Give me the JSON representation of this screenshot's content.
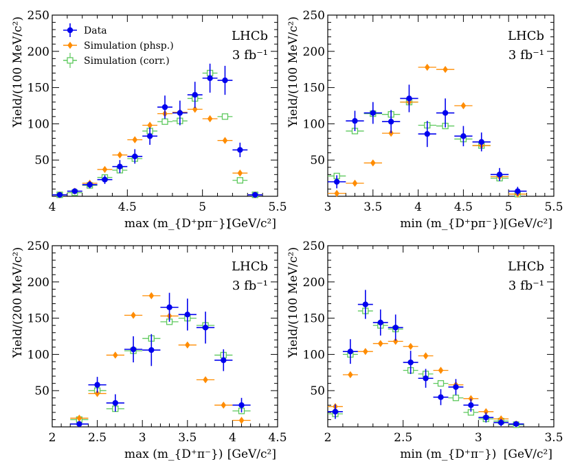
{
  "chart_data": [
    {
      "type": "scatter",
      "experiment": "LHCb",
      "luminosity": "3 fb⁻¹",
      "xlabel": "max (m_{D⁺pπ⁻})",
      "xunit": "[GeV/c²]",
      "ylabel": "Yield/(100 MeV/c²)",
      "xlim": [
        4,
        5.5
      ],
      "ylim": [
        0,
        250
      ],
      "xticks": [
        "4",
        "4.5",
        "5",
        "5.5"
      ],
      "yticks": [
        "50",
        "100",
        "150",
        "200",
        "250"
      ],
      "legend": {
        "placement": "top-left",
        "entries": [
          "Data",
          "Simulation (phsp.)",
          "Simulation (corr.)"
        ]
      },
      "series": [
        {
          "name": "Data",
          "style": "data",
          "color": "#0000ee",
          "x": [
            4.05,
            4.15,
            4.25,
            4.35,
            4.45,
            4.55,
            4.65,
            4.75,
            4.85,
            4.95,
            5.05,
            5.15,
            5.25,
            5.35
          ],
          "y": [
            2,
            7,
            16,
            23,
            41,
            55,
            83,
            123,
            115,
            140,
            163,
            160,
            64,
            2
          ],
          "err": [
            2,
            3,
            5,
            6,
            9,
            10,
            12,
            16,
            17,
            18,
            20,
            20,
            10,
            2
          ]
        },
        {
          "name": "Simulation (phsp.)",
          "style": "phsp",
          "color": "#ff8c00",
          "x": [
            4.05,
            4.15,
            4.25,
            4.35,
            4.45,
            4.55,
            4.65,
            4.75,
            4.85,
            4.95,
            5.05,
            5.15,
            5.25,
            5.35
          ],
          "y": [
            2,
            7,
            18,
            37,
            57,
            78,
            98,
            114,
            116,
            120,
            107,
            77,
            32,
            2
          ]
        },
        {
          "name": "Simulation (corr.)",
          "style": "corr",
          "color": "#5cc85c",
          "x": [
            4.05,
            4.15,
            4.25,
            4.35,
            4.45,
            4.55,
            4.65,
            4.75,
            4.85,
            4.95,
            5.05,
            5.15,
            5.25,
            5.35
          ],
          "y": [
            2,
            5,
            15,
            26,
            36,
            52,
            90,
            103,
            104,
            135,
            170,
            110,
            22,
            2
          ]
        }
      ]
    },
    {
      "type": "scatter",
      "experiment": "LHCb",
      "luminosity": "3 fb⁻¹",
      "xlabel": "min (m_{D⁺pπ⁻})",
      "xunit": "[GeV/c²]",
      "ylabel": "Yield/(100 MeV/c²)",
      "xlim": [
        3,
        5.5
      ],
      "ylim": [
        0,
        250
      ],
      "xticks": [
        "3",
        "3.5",
        "4",
        "4.5",
        "5",
        "5.5"
      ],
      "yticks": [
        "50",
        "100",
        "150",
        "200",
        "250"
      ],
      "series": [
        {
          "name": "Data",
          "style": "data",
          "color": "#0000ee",
          "x": [
            3.1,
            3.3,
            3.5,
            3.7,
            3.9,
            4.1,
            4.3,
            4.5,
            4.7,
            4.9,
            5.1
          ],
          "y": [
            20,
            104,
            115,
            103,
            135,
            86,
            115,
            83,
            75,
            30,
            7
          ],
          "err": [
            9,
            14,
            15,
            16,
            19,
            18,
            20,
            14,
            13,
            9,
            6
          ]
        },
        {
          "name": "Simulation (phsp.)",
          "style": "phsp",
          "color": "#ff8c00",
          "x": [
            3.1,
            3.3,
            3.5,
            3.7,
            3.9,
            4.1,
            4.3,
            4.5,
            4.7,
            4.9,
            5.1
          ],
          "y": [
            4,
            18,
            46,
            87,
            130,
            178,
            175,
            125,
            70,
            27,
            3
          ]
        },
        {
          "name": "Simulation (corr.)",
          "style": "corr",
          "color": "#5cc85c",
          "x": [
            3.1,
            3.3,
            3.5,
            3.7,
            3.9,
            4.1,
            4.3,
            4.5,
            4.7,
            4.9,
            5.1
          ],
          "y": [
            28,
            90,
            114,
            113,
            130,
            98,
            97,
            79,
            70,
            25,
            3
          ]
        }
      ]
    },
    {
      "type": "scatter",
      "experiment": "LHCb",
      "luminosity": "3 fb⁻¹",
      "xlabel": "max (m_{D⁺π⁻})",
      "xunit": "[GeV/c²]",
      "ylabel": "Yield/(200 MeV/c²)",
      "xlim": [
        2,
        4.5
      ],
      "ylim": [
        0,
        250
      ],
      "xticks": [
        "2",
        "2.5",
        "3",
        "3.5",
        "4",
        "4.5"
      ],
      "yticks": [
        "50",
        "100",
        "150",
        "200",
        "250"
      ],
      "series": [
        {
          "name": "Data",
          "style": "data",
          "color": "#0000ee",
          "x": [
            2.3,
            2.5,
            2.7,
            2.9,
            3.1,
            3.3,
            3.5,
            3.7,
            3.9,
            4.1
          ],
          "y": [
            4,
            58,
            33,
            107,
            106,
            165,
            155,
            137,
            92,
            30
          ],
          "err": [
            4,
            11,
            12,
            18,
            22,
            20,
            22,
            22,
            15,
            10
          ]
        },
        {
          "name": "Simulation (phsp.)",
          "style": "phsp",
          "color": "#ff8c00",
          "x": [
            2.3,
            2.5,
            2.7,
            2.9,
            3.1,
            3.3,
            3.5,
            3.7,
            3.9,
            4.1
          ],
          "y": [
            12,
            46,
            99,
            154,
            181,
            153,
            113,
            65,
            30,
            9
          ]
        },
        {
          "name": "Simulation (corr.)",
          "style": "corr",
          "color": "#5cc85c",
          "x": [
            2.3,
            2.5,
            2.7,
            2.9,
            3.1,
            3.3,
            3.5,
            3.7,
            3.9,
            4.1
          ],
          "y": [
            10,
            50,
            25,
            105,
            122,
            145,
            150,
            140,
            99,
            22
          ]
        }
      ]
    },
    {
      "type": "scatter",
      "experiment": "LHCb",
      "luminosity": "3 fb⁻¹",
      "xlabel": "min (m_{D⁺π⁻})",
      "xunit": "[GeV/c²]",
      "ylabel": "Yield/(100 MeV/c²)",
      "xlim": [
        2,
        3.5
      ],
      "ylim": [
        0,
        250
      ],
      "xticks": [
        "2",
        "2.5",
        "3",
        "3.5"
      ],
      "yticks": [
        "50",
        "100",
        "150",
        "200",
        "250"
      ],
      "series": [
        {
          "name": "Data",
          "style": "data",
          "color": "#0000ee",
          "x": [
            2.05,
            2.15,
            2.25,
            2.35,
            2.45,
            2.55,
            2.65,
            2.75,
            2.85,
            2.95,
            3.05,
            3.15,
            3.25
          ],
          "y": [
            21,
            104,
            169,
            144,
            137,
            89,
            67,
            41,
            55,
            30,
            13,
            6,
            4
          ],
          "err": [
            10,
            17,
            20,
            18,
            18,
            16,
            13,
            11,
            11,
            9,
            7,
            5,
            3
          ]
        },
        {
          "name": "Simulation (phsp.)",
          "style": "phsp",
          "color": "#ff8c00",
          "x": [
            2.05,
            2.15,
            2.25,
            2.35,
            2.45,
            2.55,
            2.65,
            2.75,
            2.85,
            2.95,
            3.05,
            3.15,
            3.25
          ],
          "y": [
            28,
            72,
            104,
            115,
            118,
            111,
            98,
            78,
            58,
            39,
            21,
            11,
            4
          ]
        },
        {
          "name": "Simulation (corr.)",
          "style": "corr",
          "color": "#5cc85c",
          "x": [
            2.05,
            2.15,
            2.25,
            2.35,
            2.45,
            2.55,
            2.65,
            2.75,
            2.85,
            2.95,
            3.05,
            3.15,
            3.25
          ],
          "y": [
            18,
            100,
            160,
            140,
            135,
            78,
            73,
            60,
            40,
            20,
            11,
            8,
            3
          ]
        }
      ]
    }
  ]
}
